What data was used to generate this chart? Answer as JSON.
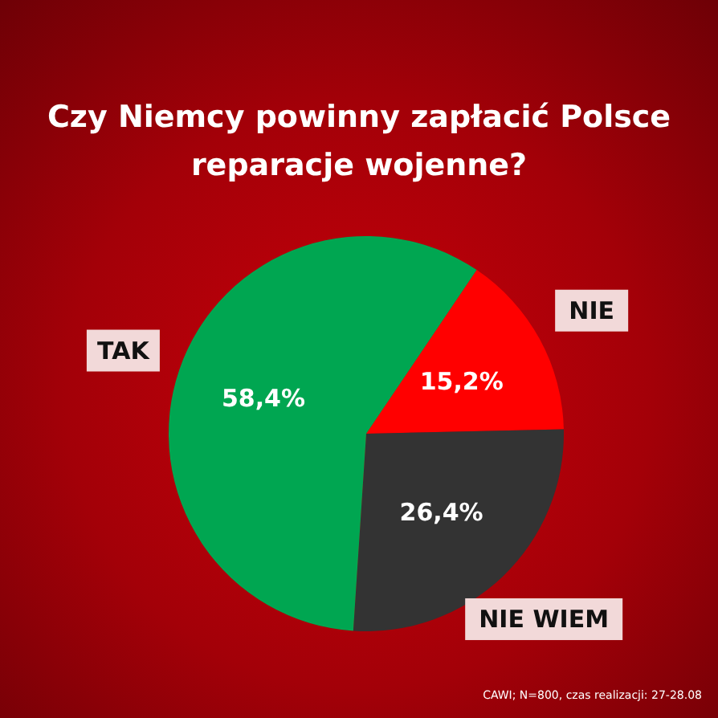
{
  "chart_data": {
    "type": "pie",
    "title": "Czy Niemcy powinny zapłacić Polsce reparacje wojenne?",
    "categories": [
      "NIE",
      "NIE WIEM",
      "TAK"
    ],
    "values": [
      15.2,
      26.4,
      58.4
    ],
    "colors": [
      "#ff0000",
      "#333333",
      "#00a651"
    ],
    "value_labels": [
      "15,2%",
      "26,4%",
      "58,4%"
    ],
    "annotations": [
      "CAWI; N=800, czas realizacji: 27-28.08"
    ],
    "legend": false
  }
}
